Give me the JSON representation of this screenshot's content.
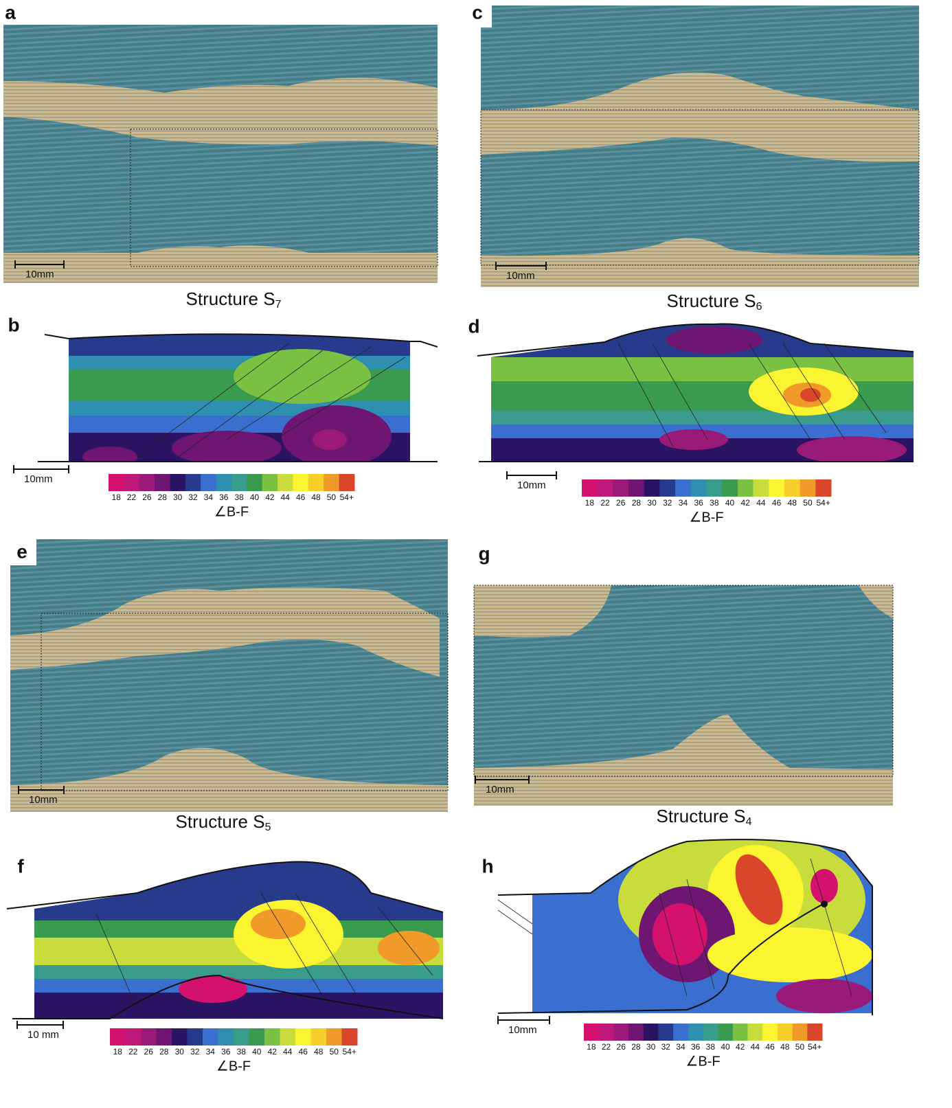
{
  "panels": {
    "a": {
      "label": "a",
      "scale_bar": "10mm",
      "caption": {
        "text": "Structure S",
        "subscript": "7"
      }
    },
    "b": {
      "label": "b",
      "scale_bar": "10mm",
      "colorbar_title": "∠B-F"
    },
    "c": {
      "label": "c",
      "scale_bar": "10mm",
      "caption": {
        "text": "Structure S",
        "subscript": "6"
      }
    },
    "d": {
      "label": "d",
      "scale_bar": "10mm",
      "colorbar_title": "∠B-F"
    },
    "e": {
      "label": "e",
      "scale_bar": "10mm",
      "caption": {
        "text": "Structure S",
        "subscript": "5"
      }
    },
    "f": {
      "label": "f",
      "scale_bar": "10 mm",
      "colorbar_title": "∠B-F"
    },
    "g": {
      "label": "g",
      "scale_bar": "10mm",
      "caption": {
        "text": "Structure S",
        "subscript": "4"
      }
    },
    "h": {
      "label": "h",
      "scale_bar": "10mm",
      "colorbar_title": "∠B-F"
    }
  },
  "colorbar": {
    "labels": [
      "18",
      "22",
      "26",
      "28",
      "30",
      "32",
      "34",
      "36",
      "38",
      "40",
      "42",
      "44",
      "46",
      "48",
      "50",
      "54+"
    ],
    "colors": [
      "#d4126e",
      "#c0187a",
      "#9a1a7a",
      "#6e1672",
      "#2a1463",
      "#283a8c",
      "#3a6fd0",
      "#2f8fb0",
      "#3a9c8a",
      "#3a9a4e",
      "#7ac043",
      "#c8dc3c",
      "#fbf430",
      "#f6cf2b",
      "#f09a2a",
      "#d9462a"
    ]
  }
}
